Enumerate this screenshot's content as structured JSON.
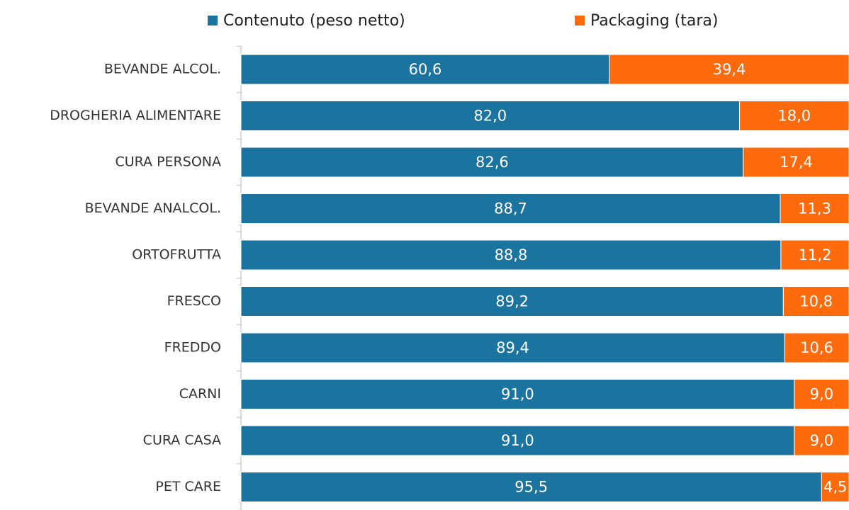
{
  "chart_data": {
    "type": "stacked-bar-horizontal",
    "categories": [
      "BEVANDE ALCOL.",
      "DROGHERIA ALIMENTARE",
      "CURA PERSONA",
      "BEVANDE ANALCOL.",
      "ORTOFRUTTA",
      "FRESCO",
      "FREDDO",
      "CARNI",
      "CURA CASA",
      "PET CARE"
    ],
    "series": [
      {
        "name": "Contenuto (peso netto)",
        "color": "#1b73a0",
        "values": [
          60.6,
          82.0,
          82.6,
          88.7,
          88.8,
          89.2,
          89.4,
          91.0,
          91.0,
          95.5
        ],
        "value_labels": [
          "60,6",
          "82,0",
          "82,6",
          "88,7",
          "88,8",
          "89,2",
          "89,4",
          "91,0",
          "91,0",
          "95,5"
        ]
      },
      {
        "name": "Packaging (tara)",
        "color": "#ff6a0d",
        "values": [
          39.4,
          18.0,
          17.4,
          11.3,
          11.2,
          10.8,
          10.6,
          9.0,
          9.0,
          4.5
        ],
        "value_labels": [
          "39,4",
          "18,0",
          "17,4",
          "11,3",
          "11,2",
          "10,8",
          "10,6",
          "9,0",
          "9,0",
          "4,5"
        ]
      }
    ],
    "xlim": [
      0,
      100
    ],
    "legend": "top"
  }
}
